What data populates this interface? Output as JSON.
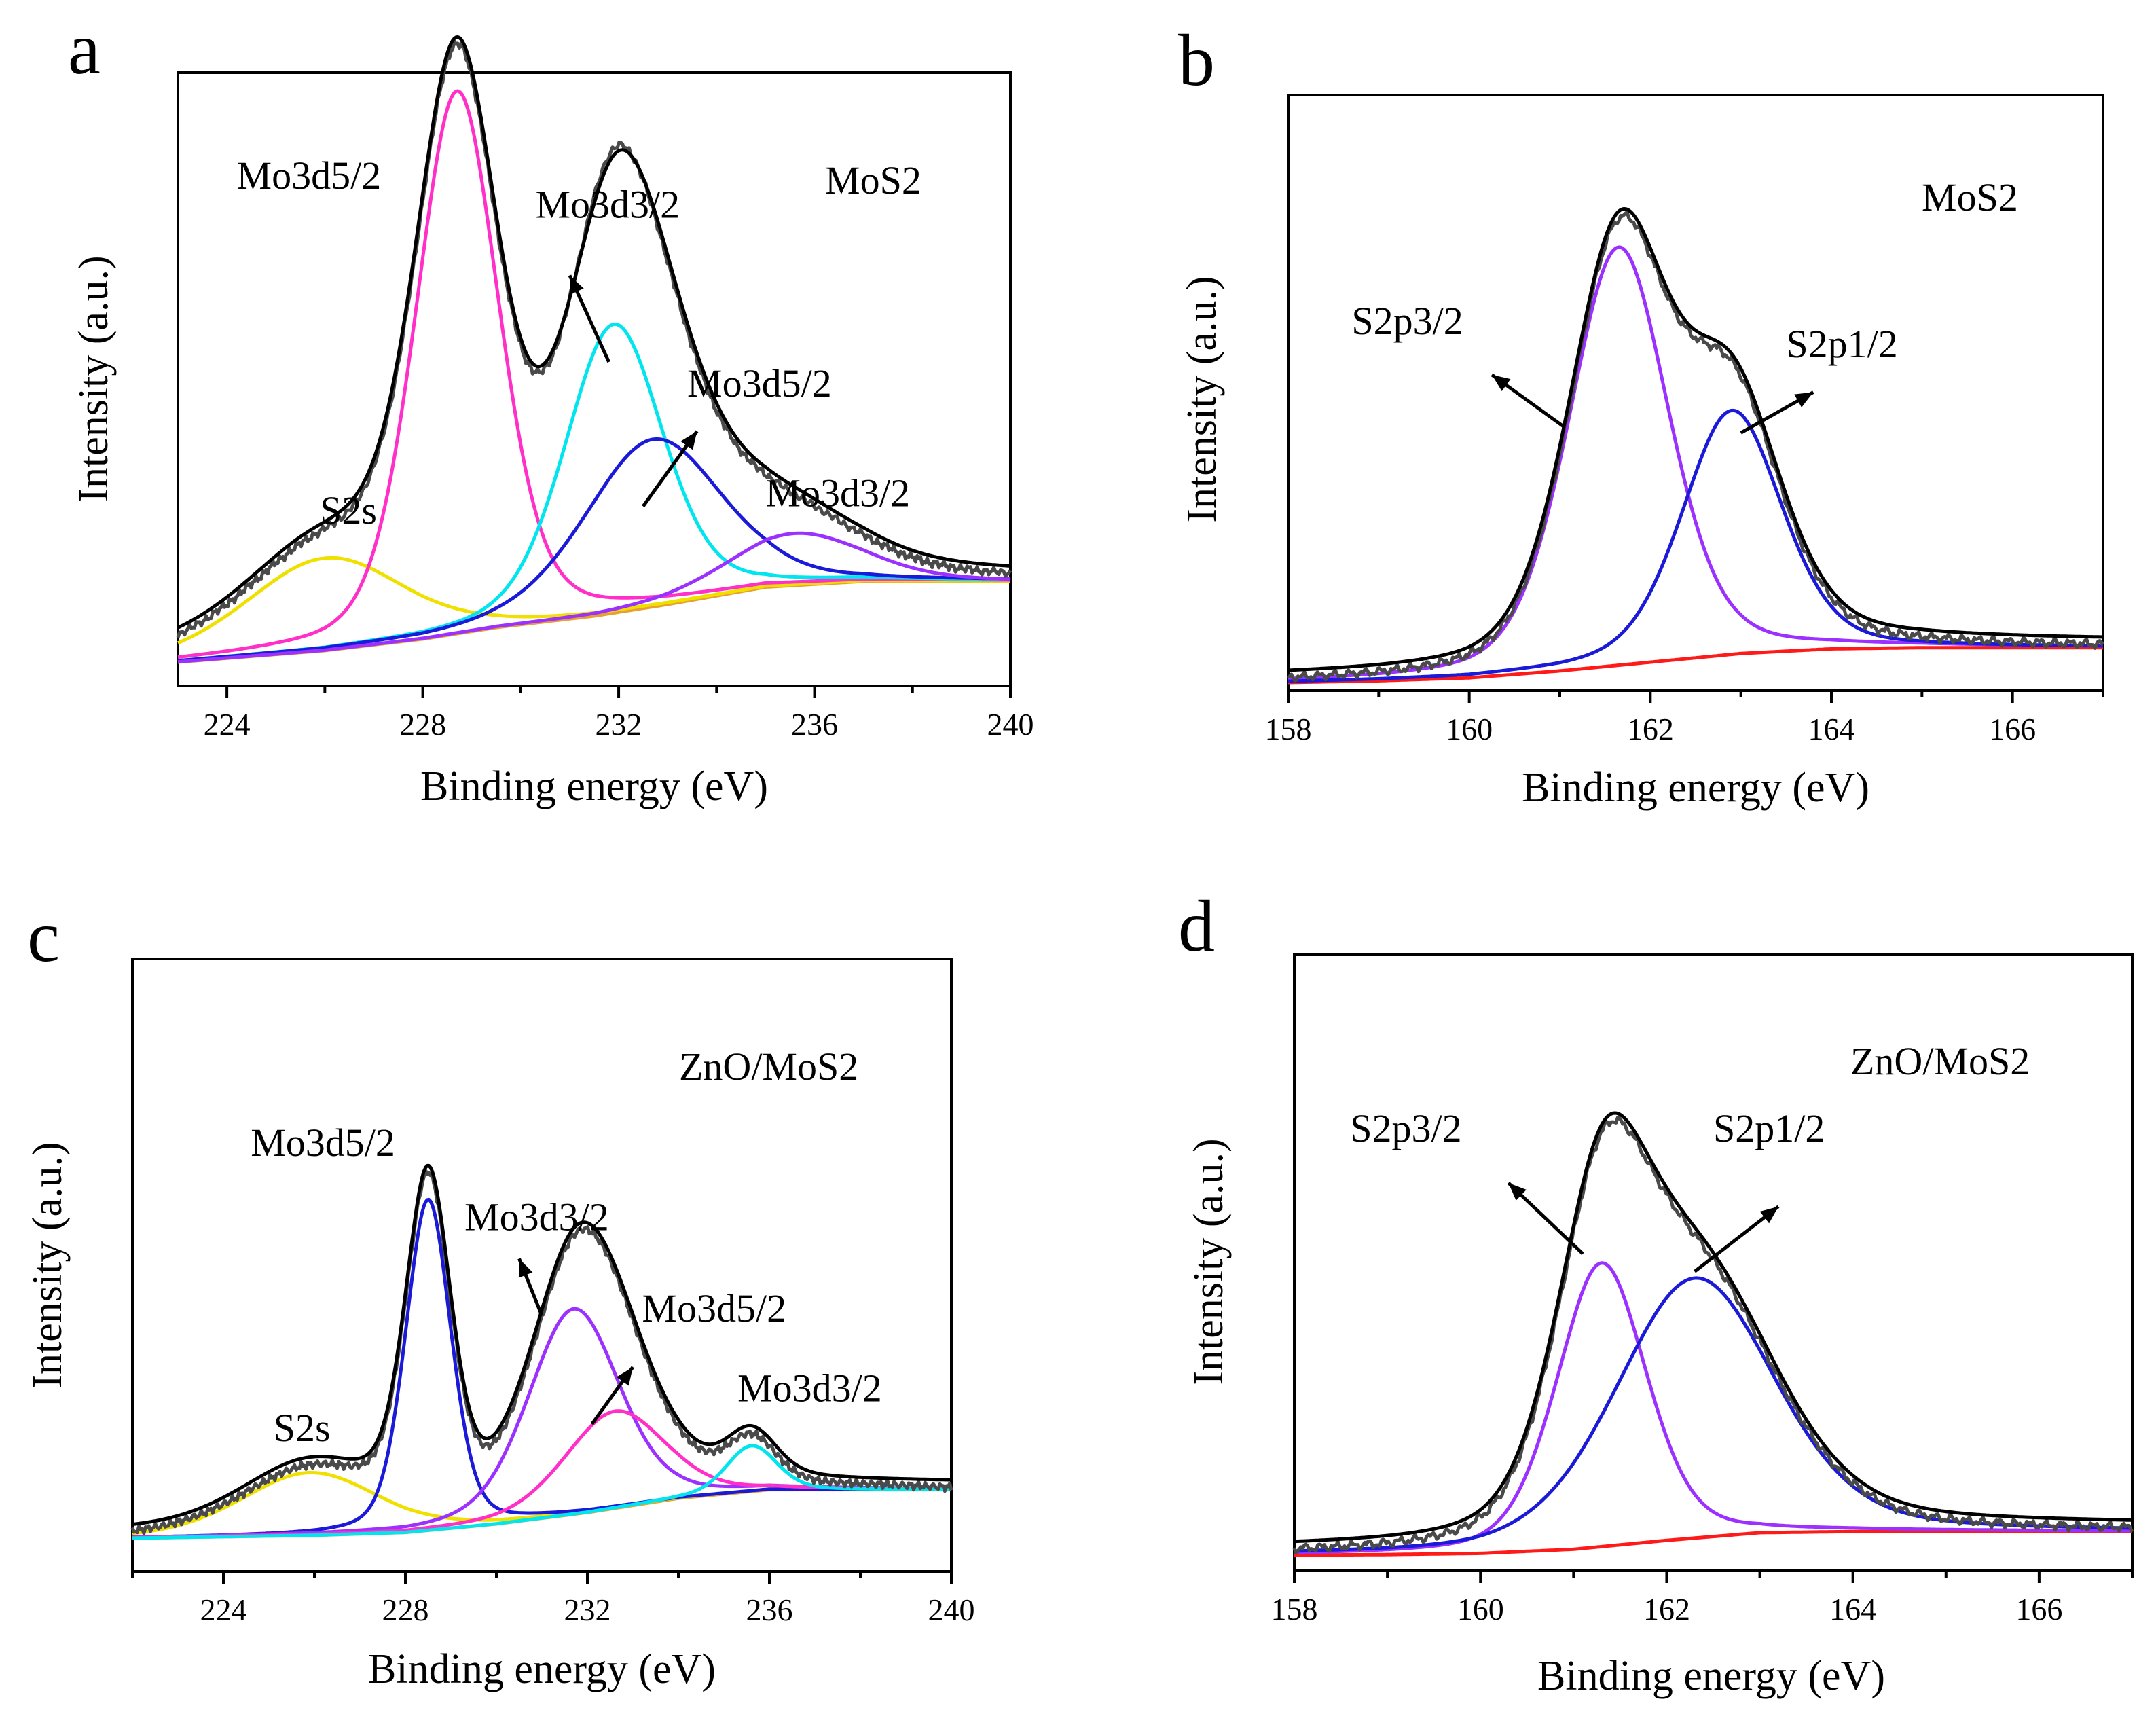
{
  "chart_data": [
    {
      "type": "line",
      "panel": "a",
      "sample": "MoS2",
      "xlabel": "Binding energy (eV)",
      "ylabel": "Intensity (a.u.)",
      "xlim": [
        223,
        240
      ],
      "ylim": [
        0,
        100
      ],
      "xticks": [
        224,
        228,
        232,
        236,
        240
      ],
      "annotations": [
        {
          "text": "S2s",
          "x": 225.9,
          "y": 24,
          "arrow": null
        },
        {
          "text": "Mo3d5/2",
          "x": 224.2,
          "y": 82,
          "arrow": null
        },
        {
          "text": "Mo3d3/2",
          "x": 230.3,
          "y": 77,
          "arrow": [
            231.8,
            52,
            231.0,
            67
          ]
        },
        {
          "text": "Mo3d5/2",
          "x": 233.4,
          "y": 46,
          "arrow": [
            232.5,
            27,
            233.6,
            40
          ]
        },
        {
          "text": "Mo3d3/2",
          "x": 235.0,
          "y": 27,
          "arrow": null
        }
      ],
      "baseline": [
        [
          223,
          0
        ],
        [
          226,
          2
        ],
        [
          228,
          4
        ],
        [
          229.5,
          6
        ],
        [
          231.5,
          8
        ],
        [
          233,
          10
        ],
        [
          235,
          13
        ],
        [
          237,
          14
        ],
        [
          240,
          14
        ]
      ],
      "peaks": [
        {
          "name": "S2s",
          "center": 226.0,
          "height": 16,
          "width": 1.6,
          "color": "#f0e000"
        },
        {
          "name": "Mo3d5/2",
          "center": 228.7,
          "height": 94,
          "width": 0.85,
          "color": "#ff2fc8"
        },
        {
          "name": "Mo3d3/2",
          "center": 231.9,
          "height": 50,
          "width": 1.0,
          "color": "#00e5ee"
        },
        {
          "name": "Mo3d5/2",
          "center": 232.7,
          "height": 29,
          "width": 1.4,
          "color": "#1a1ad8"
        },
        {
          "name": "Mo3d3/2",
          "center": 235.6,
          "height": 9,
          "width": 1.4,
          "color": "#9b30ff"
        }
      ]
    },
    {
      "type": "line",
      "panel": "b",
      "sample": "MoS2",
      "xlabel": "Binding energy (eV)",
      "ylabel": "Intensity (a.u.)",
      "xlim": [
        158,
        167
      ],
      "ylim": [
        0,
        100
      ],
      "xticks": [
        158,
        160,
        162,
        164,
        166
      ],
      "annotations": [
        {
          "text": "S2p3/2",
          "x": 158.7,
          "y": 60,
          "arrow": [
            161.05,
            44,
            160.25,
            53
          ]
        },
        {
          "text": "S2p1/2",
          "x": 163.5,
          "y": 56,
          "arrow": [
            163.0,
            43,
            163.8,
            50
          ]
        }
      ],
      "baseline": [
        [
          158,
          0
        ],
        [
          159,
          0.3
        ],
        [
          160,
          0.8
        ],
        [
          161,
          2
        ],
        [
          162,
          3.5
        ],
        [
          163,
          5
        ],
        [
          164,
          5.8
        ],
        [
          165,
          6
        ],
        [
          167,
          6
        ]
      ],
      "peaks": [
        {
          "name": "S2p3/2",
          "center": 161.65,
          "height": 72,
          "width": 0.55,
          "color": "#9b30ff"
        },
        {
          "name": "S2p1/2",
          "center": 162.9,
          "height": 42,
          "width": 0.55,
          "color": "#1a1ad8"
        }
      ]
    },
    {
      "type": "line",
      "panel": "c",
      "sample": "ZnO/MoS2",
      "xlabel": "Binding energy (eV)",
      "ylabel": "Intensity (a.u.)",
      "xlim": [
        222,
        240
      ],
      "ylim": [
        0,
        100
      ],
      "xticks": [
        224,
        228,
        232,
        236,
        240
      ],
      "annotations": [
        {
          "text": "S2s",
          "x": 225.1,
          "y": 17,
          "arrow": null
        },
        {
          "text": "Mo3d5/2",
          "x": 224.6,
          "y": 67,
          "arrow": null
        },
        {
          "text": "Mo3d3/2",
          "x": 229.3,
          "y": 54,
          "arrow": [
            231.0,
            39,
            230.5,
            49
          ]
        },
        {
          "text": "Mo3d5/2",
          "x": 233.2,
          "y": 38,
          "arrow": [
            232.1,
            20,
            233.0,
            30
          ]
        },
        {
          "text": "Mo3d3/2",
          "x": 235.3,
          "y": 24,
          "arrow": null
        }
      ],
      "baseline": [
        [
          222,
          0
        ],
        [
          226,
          0.5
        ],
        [
          228,
          1
        ],
        [
          230,
          2.5
        ],
        [
          232,
          4.5
        ],
        [
          234,
          7
        ],
        [
          236,
          8.5
        ],
        [
          240,
          8.5
        ]
      ],
      "peaks": [
        {
          "name": "S2s",
          "center": 225.9,
          "height": 11,
          "width": 1.5,
          "color": "#f0e000"
        },
        {
          "name": "Mo3d5/2",
          "center": 228.5,
          "height": 58,
          "width": 0.5,
          "color": "#1a1ad8"
        },
        {
          "name": "Mo3d3/2",
          "center": 231.7,
          "height": 36,
          "width": 1.0,
          "color": "#9b30ff"
        },
        {
          "name": "Mo3d5/2",
          "center": 232.6,
          "height": 17,
          "width": 1.1,
          "color": "#ff2fc8"
        },
        {
          "name": "Mo3d3/2",
          "center": 235.6,
          "height": 8,
          "width": 0.55,
          "color": "#00e5ee"
        }
      ]
    },
    {
      "type": "line",
      "panel": "d",
      "sample": "ZnO/MoS2",
      "xlabel": "Binding energy (eV)",
      "ylabel": "Intensity (a.u.)",
      "xlim": [
        158,
        167
      ],
      "ylim": [
        0,
        100
      ],
      "xticks": [
        158,
        160,
        162,
        164,
        166
      ],
      "annotations": [
        {
          "text": "S2p3/2",
          "x": 158.6,
          "y": 70,
          "arrow": [
            161.1,
            51,
            160.3,
            63
          ]
        },
        {
          "text": "S2p1/2",
          "x": 162.5,
          "y": 70,
          "arrow": [
            162.3,
            48,
            163.2,
            59
          ]
        }
      ],
      "baseline": [
        [
          158,
          0
        ],
        [
          159,
          0.1
        ],
        [
          160,
          0.3
        ],
        [
          161,
          1
        ],
        [
          162,
          2.5
        ],
        [
          163,
          3.8
        ],
        [
          164,
          4
        ],
        [
          167,
          4
        ]
      ],
      "peaks": [
        {
          "name": "S2p3/2",
          "center": 161.3,
          "height": 48,
          "width": 0.48,
          "color": "#9b30ff"
        },
        {
          "name": "S2p1/2",
          "center": 162.3,
          "height": 44,
          "width": 0.85,
          "color": "#1a1ad8"
        }
      ]
    }
  ],
  "colors": {
    "envelope": "#000000",
    "raw": "#4a4a4a",
    "background_d": "#ff1a1a"
  }
}
